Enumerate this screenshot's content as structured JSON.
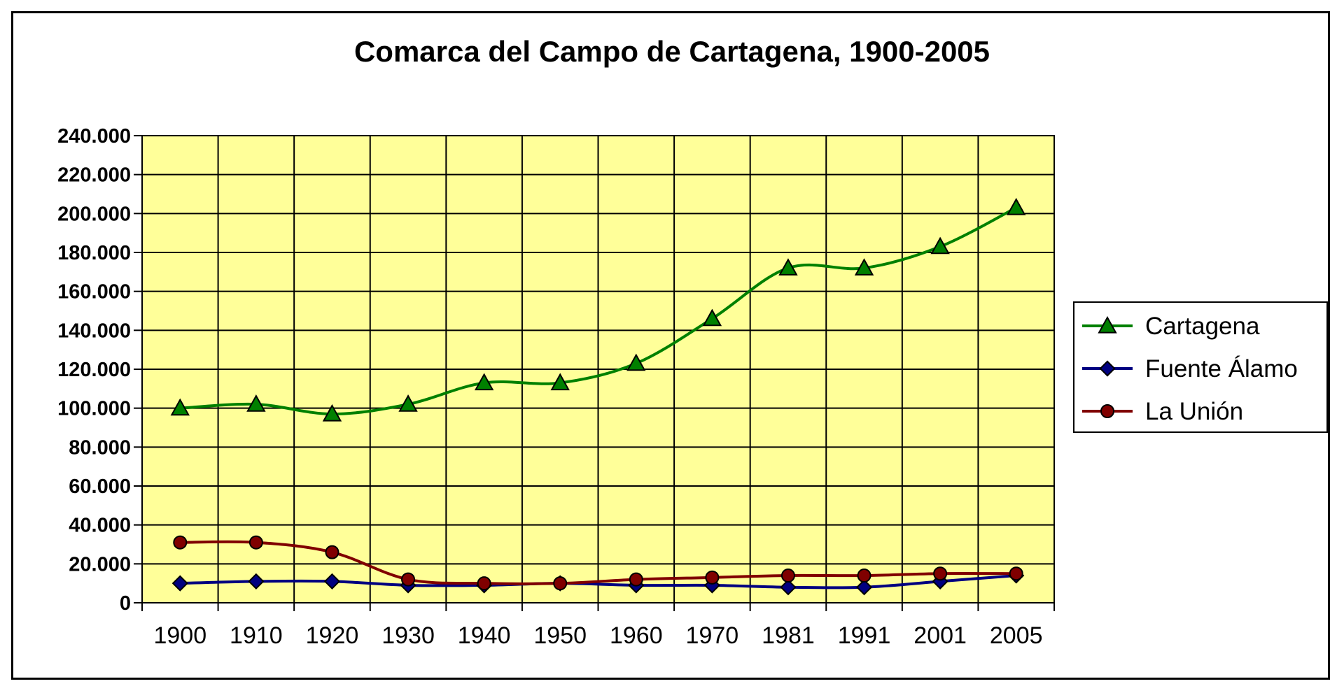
{
  "chart_data": {
    "type": "line",
    "title": "Comarca del Campo de Cartagena, 1900-2005",
    "categories": [
      "1900",
      "1910",
      "1920",
      "1930",
      "1940",
      "1950",
      "1960",
      "1970",
      "1981",
      "1991",
      "2001",
      "2005"
    ],
    "ylim": [
      0,
      240000
    ],
    "yticks": [
      0,
      20000,
      40000,
      60000,
      80000,
      100000,
      120000,
      140000,
      160000,
      180000,
      200000,
      220000,
      240000
    ],
    "ytick_labels": [
      "0",
      "20.000",
      "40.000",
      "60.000",
      "80.000",
      "100.000",
      "120.000",
      "140.000",
      "160.000",
      "180.000",
      "200.000",
      "220.000",
      "240.000"
    ],
    "grid": true,
    "legend_position": "right",
    "plot_background": "#ffff99",
    "series": [
      {
        "name": "Cartagena",
        "color": "#008000",
        "marker": "triangle",
        "marker_fill": "#008000",
        "values": [
          100000,
          102000,
          97000,
          102000,
          113000,
          113000,
          123000,
          146000,
          172000,
          172000,
          183000,
          203000
        ]
      },
      {
        "name": "Fuente Álamo",
        "color": "#000080",
        "marker": "diamond",
        "marker_fill": "#000080",
        "values": [
          10000,
          11000,
          11000,
          9000,
          9000,
          10000,
          9000,
          9000,
          8000,
          8000,
          11000,
          14000
        ]
      },
      {
        "name": "La Unión",
        "color": "#800000",
        "marker": "circle",
        "marker_fill": "#800000",
        "values": [
          31000,
          31000,
          26000,
          12000,
          10000,
          10000,
          12000,
          13000,
          14000,
          14000,
          15000,
          15000
        ]
      }
    ]
  }
}
